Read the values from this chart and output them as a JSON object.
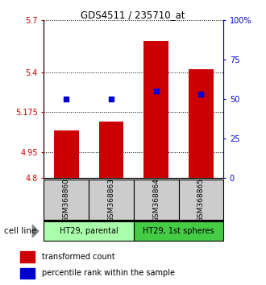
{
  "title": "GDS4511 / 235710_at",
  "samples": [
    "GSM368860",
    "GSM368863",
    "GSM368864",
    "GSM368865"
  ],
  "bar_values": [
    5.07,
    5.12,
    5.58,
    5.42
  ],
  "bar_bottom": 4.8,
  "percentile_values": [
    50.0,
    50.0,
    55.0,
    53.0
  ],
  "ylim_left": [
    4.8,
    5.7
  ],
  "ylim_right": [
    0,
    100
  ],
  "yticks_left": [
    4.8,
    4.95,
    5.175,
    5.4,
    5.7
  ],
  "ytick_labels_left": [
    "4.8",
    "4.95",
    "5.175",
    "5.4",
    "5.7"
  ],
  "yticks_right": [
    0,
    25,
    50,
    75,
    100
  ],
  "ytick_labels_right": [
    "0",
    "25",
    "50",
    "75",
    "100%"
  ],
  "bar_color": "#cc0000",
  "dot_color": "#0000cc",
  "groups": [
    {
      "label": "HT29, parental",
      "samples": [
        0,
        1
      ],
      "color": "#aaffaa"
    },
    {
      "label": "HT29, 1st spheres",
      "samples": [
        2,
        3
      ],
      "color": "#44cc44"
    }
  ],
  "cell_line_label": "cell line",
  "legend_bar_label": "transformed count",
  "legend_dot_label": "percentile rank within the sample",
  "sample_box_color": "#cccccc",
  "bar_width": 0.55
}
